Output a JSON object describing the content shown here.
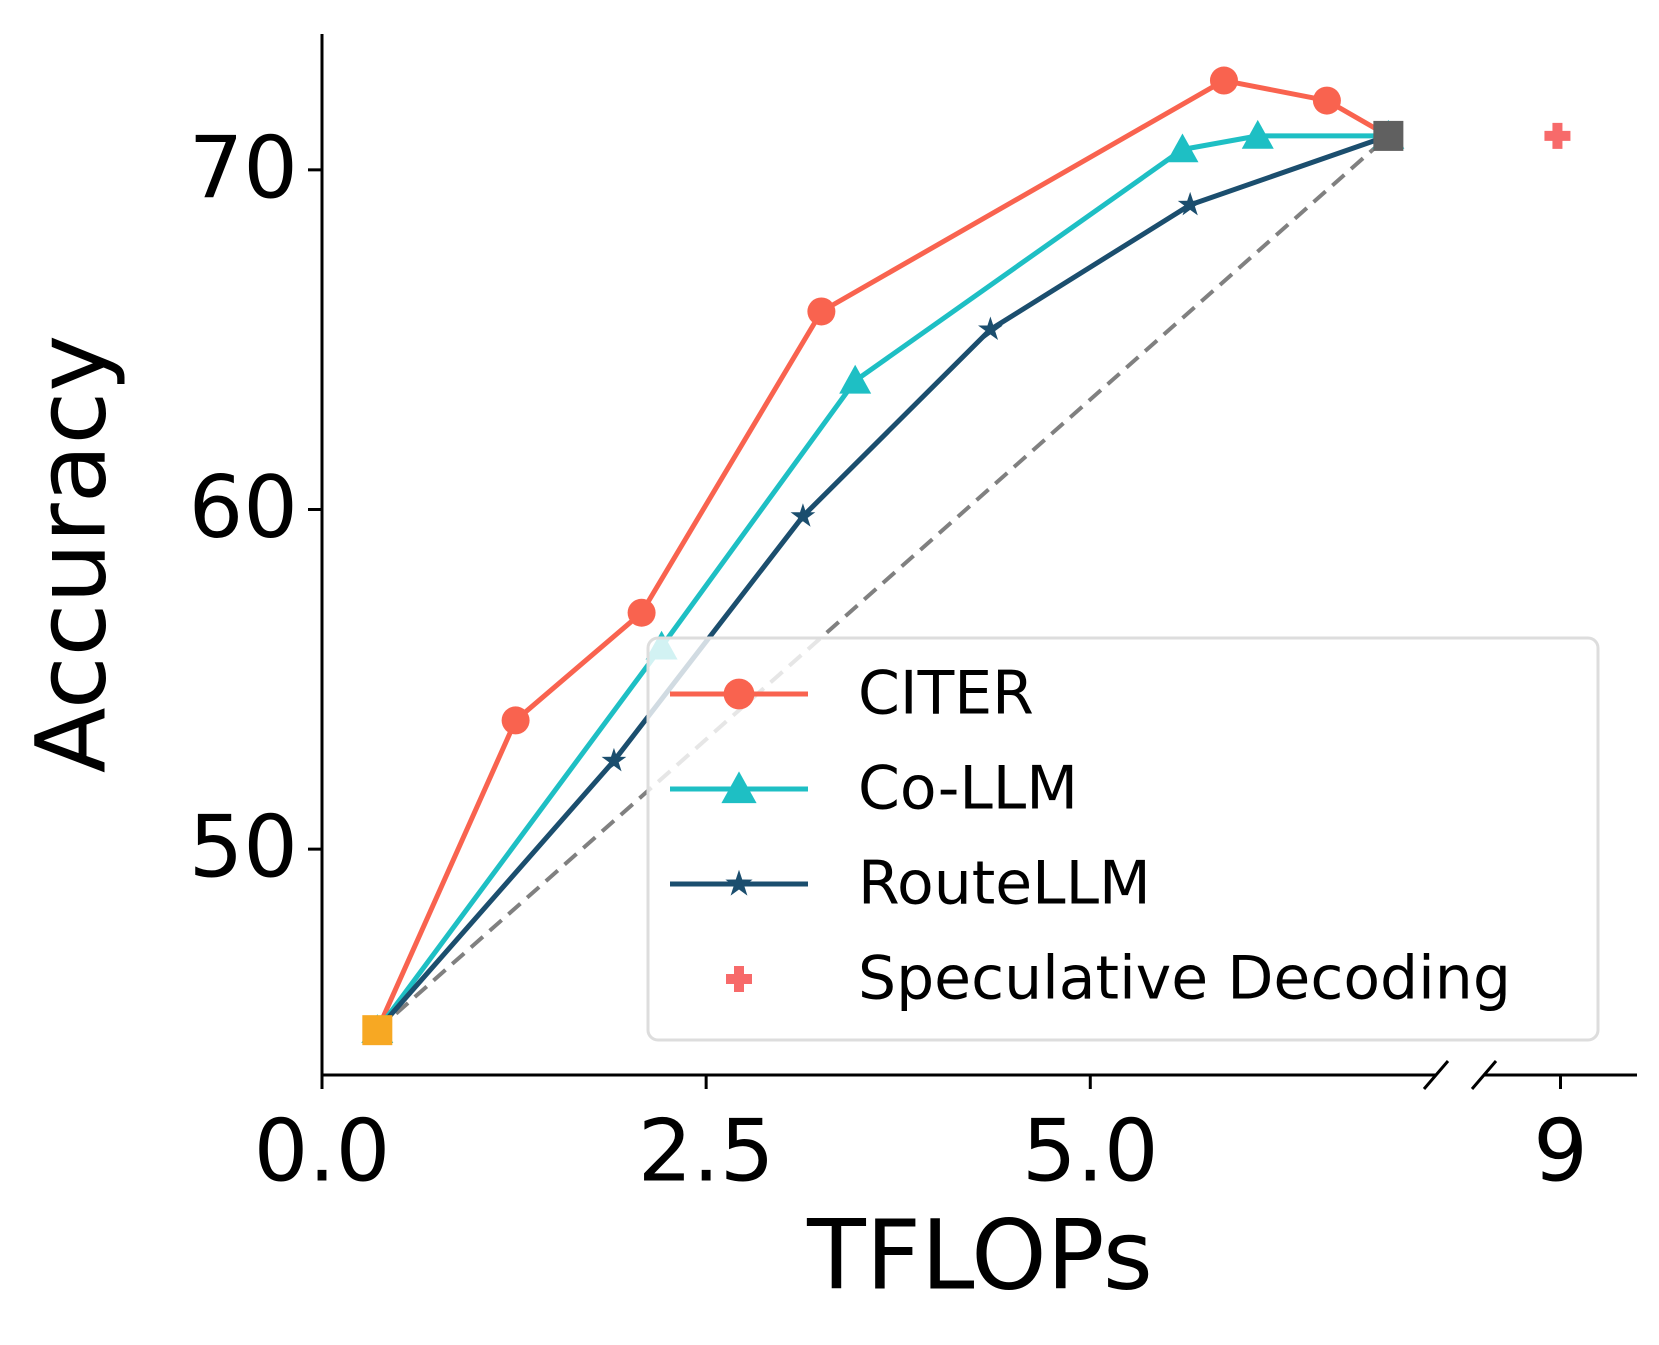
{
  "chart_data": {
    "type": "line",
    "xlabel": "TFLOPs",
    "ylabel": "Accuracy",
    "xlim": [
      0,
      9.5
    ],
    "xbreak": [
      7.25,
      8.5
    ],
    "xticks": [
      {
        "value": 0,
        "label": "0.0"
      },
      2.5,
      {
        "value": 5,
        "label": "5.0"
      },
      9
    ],
    "ylim": [
      43.35,
      74
    ],
    "yticks": [
      50,
      60,
      70
    ],
    "legend": "lower right",
    "series": [
      {
        "name": "CITER",
        "color": "#f9634f",
        "marker": "circle",
        "x": [
          0.36,
          1.26,
          2.08,
          3.25,
          5.87,
          6.54,
          6.94
        ],
        "y": [
          44.67,
          53.79,
          56.96,
          65.83,
          72.63,
          72.04,
          71.0
        ]
      },
      {
        "name": "Co-LLM",
        "color": "#1ebfc4",
        "marker": "triangle",
        "x": [
          0.36,
          2.21,
          3.47,
          5.6,
          6.09,
          6.94
        ],
        "y": [
          44.67,
          55.96,
          63.79,
          70.6,
          71.0,
          71.0
        ]
      },
      {
        "name": "RouteLLM",
        "color": "#1b4e6e",
        "marker": "star",
        "x": [
          0.36,
          1.9,
          3.13,
          4.35,
          5.65,
          6.94
        ],
        "y": [
          44.67,
          52.6,
          59.8,
          65.3,
          68.97,
          71.0
        ]
      },
      {
        "name": "Speculative Decoding",
        "color": "#f76a6a",
        "marker": "plus",
        "scatter": true,
        "x": [
          8.98
        ],
        "y": [
          71.0
        ]
      }
    ],
    "reference_line": {
      "color": "#808080",
      "style": "dashed",
      "x": [
        0.36,
        6.94
      ],
      "y": [
        44.67,
        71.0
      ]
    },
    "markers": [
      {
        "color": "#f7a823",
        "shape": "square",
        "x": 0.36,
        "y": 44.67
      },
      {
        "color": "#606060",
        "shape": "square",
        "x": 6.94,
        "y": 71.0
      }
    ]
  }
}
